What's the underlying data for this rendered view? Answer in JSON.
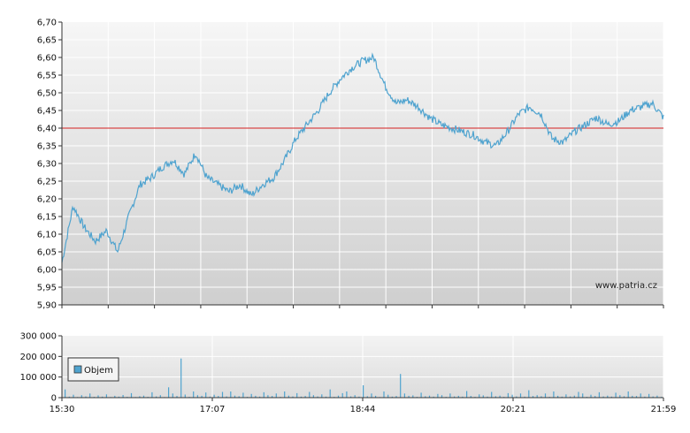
{
  "watermark": "www.patria.cz",
  "chart_data": [
    {
      "type": "line",
      "title": "",
      "xlabel": "",
      "ylabel": "",
      "ylim": [
        5.9,
        6.7
      ],
      "y_tick_labels": [
        "6,70",
        "6,65",
        "6,60",
        "6,55",
        "6,50",
        "6,45",
        "6,40",
        "6,35",
        "6,30",
        "6,25",
        "6,20",
        "6,15",
        "6,10",
        "6,05",
        "6,00",
        "5,95",
        "5,90"
      ],
      "reference_line": {
        "value": 6.4,
        "color": "#d42020"
      },
      "series_color": "#4fa3cf",
      "grid": true,
      "series": [
        {
          "x": [
            "15:30",
            "15:42",
            "15:48",
            "15:54",
            "16:00",
            "16:06",
            "16:12",
            "16:18",
            "16:24",
            "16:30",
            "16:36",
            "16:42",
            "16:48",
            "16:54",
            "17:00",
            "17:07",
            "17:14",
            "17:22",
            "17:30",
            "17:38",
            "17:46",
            "17:54",
            "18:00",
            "18:06",
            "18:12",
            "18:20",
            "18:28",
            "18:36",
            "18:44",
            "18:52",
            "19:00",
            "19:08",
            "19:16",
            "19:24",
            "19:32",
            "19:40",
            "19:48",
            "19:56",
            "20:04",
            "20:12",
            "20:21",
            "20:28",
            "20:34",
            "20:40",
            "20:46",
            "20:52",
            "21:00",
            "21:08",
            "21:16",
            "21:24",
            "21:32",
            "21:40",
            "21:48",
            "21:54",
            "21:59"
          ],
          "values": [
            6.02,
            6.18,
            6.12,
            6.08,
            6.11,
            6.05,
            6.15,
            6.24,
            6.26,
            6.29,
            6.31,
            6.27,
            6.33,
            6.26,
            6.24,
            6.22,
            6.24,
            6.21,
            6.24,
            6.26,
            6.31,
            6.37,
            6.41,
            6.45,
            6.5,
            6.54,
            6.57,
            6.59,
            6.6,
            6.52,
            6.47,
            6.48,
            6.46,
            6.43,
            6.41,
            6.4,
            6.39,
            6.38,
            6.36,
            6.35,
            6.39,
            6.44,
            6.46,
            6.44,
            6.37,
            6.36,
            6.39,
            6.41,
            6.43,
            6.41,
            6.42,
            6.45,
            6.46,
            6.47,
            6.43
          ]
        }
      ]
    },
    {
      "type": "bar",
      "title": "",
      "ylim": [
        0,
        300000
      ],
      "y_tick_labels": [
        "300 000",
        "200 000",
        "100 000",
        "0"
      ],
      "x_tick_labels": [
        "15:30",
        "17:07",
        "18:44",
        "20:21",
        "21:59"
      ],
      "legend": {
        "label": "Objem",
        "placement": "top-left"
      },
      "bar_color": "#4fa3cf",
      "series": [
        {
          "name": "Objem",
          "values": [
            40000,
            5000,
            14000,
            3000,
            12000,
            6000,
            20000,
            4000,
            11000,
            5000,
            16000,
            3000,
            9000,
            5000,
            13000,
            4000,
            22000,
            3000,
            7000,
            10000,
            4000,
            26000,
            6000,
            12000,
            3000,
            50000,
            20000,
            8000,
            190000,
            15000,
            4000,
            30000,
            12000,
            9000,
            25000,
            5000,
            14000,
            8000,
            28000,
            6000,
            30000,
            10000,
            7000,
            24000,
            4000,
            18000,
            9000,
            5000,
            26000,
            12000,
            8000,
            20000,
            4000,
            30000,
            10000,
            6000,
            22000,
            5000,
            8000,
            28000,
            12000,
            6000,
            16000,
            5000,
            40000,
            4000,
            10000,
            22000,
            30000,
            6000,
            12000,
            5000,
            60000,
            7000,
            20000,
            9000,
            3000,
            30000,
            14000,
            5000,
            8000,
            115000,
            20000,
            9000,
            11000,
            4000,
            24000,
            7000,
            10000,
            5000,
            18000,
            12000,
            4000,
            20000,
            6000,
            9000,
            5000,
            32000,
            8000,
            4000,
            16000,
            11000,
            5000,
            28000,
            7000,
            10000,
            4000,
            22000,
            14000,
            6000,
            20000,
            5000,
            36000,
            8000,
            12000,
            7000,
            20000,
            4000,
            30000,
            9000,
            5000,
            16000,
            6000,
            10000,
            28000,
            20000,
            4000,
            14000,
            8000,
            26000,
            6000,
            10000,
            5000,
            24000,
            12000,
            7000,
            30000,
            9000,
            8000,
            20000,
            5000,
            18000,
            6000,
            10000,
            4000
          ]
        }
      ]
    }
  ]
}
